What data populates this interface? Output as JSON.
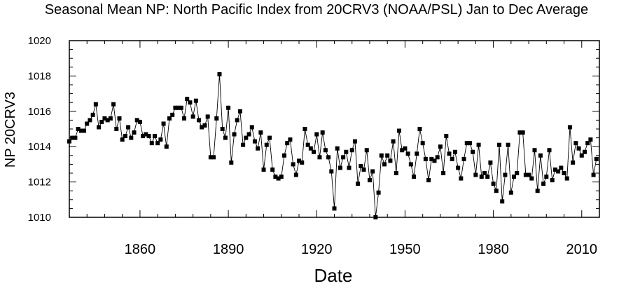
{
  "chart_data": {
    "type": "line",
    "title": "Seasonal Mean NP: North Pacific Index from 20CRV3 (NOAA/PSL) Jan to Dec Average",
    "xlabel": "Date",
    "ylabel": "NP 20CRV3",
    "xlim": [
      1836,
      2016
    ],
    "ylim": [
      1010,
      1020
    ],
    "xticks": [
      1860,
      1890,
      1920,
      1950,
      1980,
      2010
    ],
    "yticks": [
      1010,
      1012,
      1014,
      1016,
      1018,
      1020
    ],
    "grid": false,
    "legend": "none",
    "marker": "square",
    "colors": {
      "line": "#000000",
      "marker": "#000000"
    },
    "series": [
      {
        "x": [
          1836,
          1837,
          1838,
          1839,
          1840,
          1841,
          1842,
          1843,
          1844,
          1845,
          1846,
          1847,
          1848,
          1849,
          1850,
          1851,
          1852,
          1853,
          1854,
          1855,
          1856,
          1857,
          1858,
          1859,
          1860,
          1861,
          1862,
          1863,
          1864,
          1865,
          1866,
          1867,
          1868,
          1869,
          1870,
          1871,
          1872,
          1873,
          1874,
          1875,
          1876,
          1877,
          1878,
          1879,
          1880,
          1881,
          1882,
          1883,
          1884,
          1885,
          1886,
          1887,
          1888,
          1889,
          1890,
          1891,
          1892,
          1893,
          1894,
          1895,
          1896,
          1897,
          1898,
          1899,
          1900,
          1901,
          1902,
          1903,
          1904,
          1905,
          1906,
          1907,
          1908,
          1909,
          1910,
          1911,
          1912,
          1913,
          1914,
          1915,
          1916,
          1917,
          1918,
          1919,
          1920,
          1921,
          1922,
          1923,
          1924,
          1925,
          1926,
          1927,
          1928,
          1929,
          1930,
          1931,
          1932,
          1933,
          1934,
          1935,
          1936,
          1937,
          1938,
          1939,
          1940,
          1941,
          1942,
          1943,
          1944,
          1945,
          1946,
          1947,
          1948,
          1949,
          1950,
          1951,
          1952,
          1953,
          1954,
          1955,
          1956,
          1957,
          1958,
          1959,
          1960,
          1961,
          1962,
          1963,
          1964,
          1965,
          1966,
          1967,
          1968,
          1969,
          1970,
          1971,
          1972,
          1973,
          1974,
          1975,
          1976,
          1977,
          1978,
          1979,
          1980,
          1981,
          1982,
          1983,
          1984,
          1985,
          1986,
          1987,
          1988,
          1989,
          1990,
          1991,
          1992,
          1993,
          1994,
          1995,
          1996,
          1997,
          1998,
          1999,
          2000,
          2001,
          2002,
          2003,
          2004,
          2005,
          2006,
          2007,
          2008,
          2009,
          2010,
          2011,
          2012,
          2013,
          2014,
          2015
        ],
        "y": [
          1014.3,
          1014.5,
          1014.5,
          1015.0,
          1014.9,
          1014.9,
          1015.3,
          1015.5,
          1015.8,
          1016.4,
          1015.1,
          1015.4,
          1015.6,
          1015.5,
          1015.6,
          1016.4,
          1015.0,
          1015.6,
          1014.4,
          1014.6,
          1015.1,
          1014.5,
          1014.8,
          1015.5,
          1015.4,
          1014.6,
          1014.7,
          1014.6,
          1014.2,
          1014.6,
          1014.2,
          1014.4,
          1015.3,
          1014.0,
          1015.6,
          1015.8,
          1016.2,
          1016.2,
          1016.2,
          1015.6,
          1016.7,
          1016.5,
          1015.7,
          1016.6,
          1015.5,
          1015.1,
          1015.2,
          1015.7,
          1013.4,
          1013.4,
          1015.6,
          1018.1,
          1015.0,
          1014.5,
          1016.2,
          1013.1,
          1014.7,
          1015.5,
          1016.0,
          1014.1,
          1014.5,
          1014.7,
          1015.1,
          1014.3,
          1013.9,
          1014.8,
          1012.7,
          1014.1,
          1014.5,
          1012.7,
          1012.3,
          1012.2,
          1012.3,
          1013.5,
          1014.2,
          1014.4,
          1013.0,
          1012.4,
          1013.2,
          1013.1,
          1015.0,
          1014.1,
          1013.9,
          1013.7,
          1014.7,
          1013.4,
          1014.8,
          1013.8,
          1013.4,
          1012.6,
          1010.5,
          1013.9,
          1012.8,
          1013.4,
          1013.7,
          1012.8,
          1013.8,
          1014.3,
          1011.9,
          1012.9,
          1012.7,
          1013.8,
          1012.1,
          1012.6,
          1010.0,
          1011.4,
          1013.5,
          1013.0,
          1013.5,
          1013.2,
          1014.3,
          1012.5,
          1014.9,
          1013.8,
          1013.9,
          1013.6,
          1013.0,
          1012.3,
          1013.6,
          1015.0,
          1014.2,
          1013.3,
          1012.1,
          1013.3,
          1013.2,
          1013.4,
          1014.0,
          1012.5,
          1014.6,
          1013.6,
          1013.3,
          1013.7,
          1012.8,
          1012.2,
          1013.3,
          1014.2,
          1014.2,
          1013.7,
          1012.4,
          1014.1,
          1012.3,
          1012.5,
          1012.3,
          1013.1,
          1011.9,
          1011.5,
          1014.1,
          1010.9,
          1012.4,
          1014.1,
          1011.4,
          1012.3,
          1012.5,
          1014.8,
          1014.8,
          1012.4,
          1012.4,
          1012.2,
          1013.8,
          1011.5,
          1013.5,
          1011.9,
          1012.3,
          1013.8,
          1012.1,
          1012.7,
          1012.6,
          1012.8,
          1012.5,
          1012.2,
          1015.1,
          1013.1,
          1014.2,
          1013.9,
          1013.5,
          1013.7,
          1014.2,
          1014.4,
          1012.4,
          1013.3
        ]
      }
    ]
  }
}
